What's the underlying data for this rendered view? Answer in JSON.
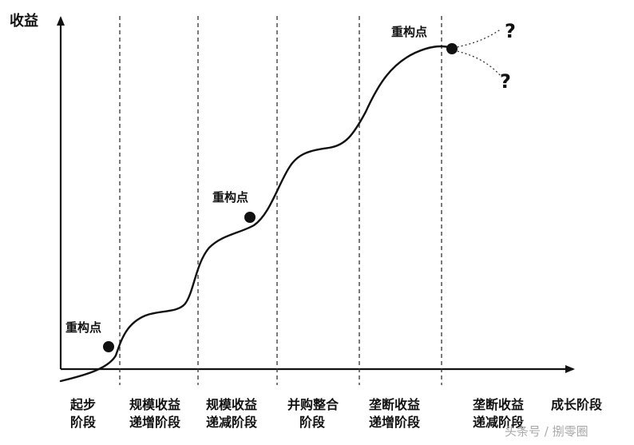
{
  "y_axis_label": "收益",
  "x_axis_label": "成长阶段",
  "reconstruction_label": "重构点",
  "question_mark": "?",
  "stages": [
    {
      "line1": "起步",
      "line2": "阶段"
    },
    {
      "line1": "规模收益",
      "line2": "递增阶段"
    },
    {
      "line1": "规模收益",
      "line2": "递减阶段"
    },
    {
      "line1": "并购整合",
      "line2": "阶段"
    },
    {
      "line1": "垄断收益",
      "line2": "递增阶段"
    },
    {
      "line1": "垄断收益",
      "line2": "递减阶段"
    }
  ],
  "watermark": "头条号 / 捌零圈",
  "colors": {
    "ink": "#111111",
    "watermark": "#a8a8a8"
  }
}
